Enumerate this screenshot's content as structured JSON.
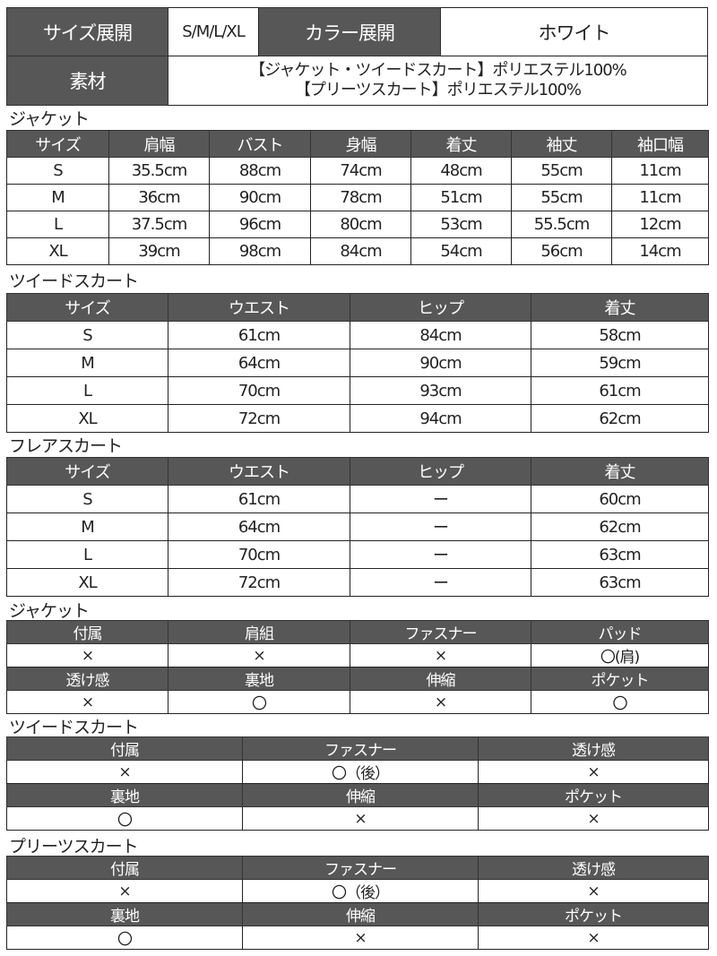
{
  "summary": {
    "size_label": "サイズ展開",
    "sizes": "S/M/L/XL",
    "color_label": "カラー展開",
    "color": "ホワイト",
    "material_label": "素材",
    "material_lines": [
      "【ジャケット・ツイードスカート】ポリエステル100%",
      "【プリーツスカート】ポリエステル100%"
    ]
  },
  "size_tables": [
    {
      "title": "ジャケット",
      "columns": [
        "サイズ",
        "肩幅",
        "バスト",
        "身幅",
        "着丈",
        "袖丈",
        "袖口幅"
      ],
      "rows": [
        [
          "S",
          "35.5cm",
          "88cm",
          "74cm",
          "48cm",
          "55cm",
          "11cm"
        ],
        [
          "M",
          "36cm",
          "90cm",
          "78cm",
          "51cm",
          "55cm",
          "11cm"
        ],
        [
          "L",
          "37.5cm",
          "96cm",
          "80cm",
          "53cm",
          "55.5cm",
          "12cm"
        ],
        [
          "XL",
          "39cm",
          "98cm",
          "84cm",
          "54cm",
          "56cm",
          "14cm"
        ]
      ]
    },
    {
      "title": "ツイードスカート",
      "columns": [
        "サイズ",
        "ウエスト",
        "ヒップ",
        "着丈"
      ],
      "rows": [
        [
          "S",
          "61cm",
          "84cm",
          "58cm"
        ],
        [
          "M",
          "64cm",
          "90cm",
          "59cm"
        ],
        [
          "L",
          "70cm",
          "93cm",
          "61cm"
        ],
        [
          "XL",
          "72cm",
          "94cm",
          "62cm"
        ]
      ]
    },
    {
      "title": "フレアスカート",
      "columns": [
        "サイズ",
        "ウエスト",
        "ヒップ",
        "着丈"
      ],
      "rows": [
        [
          "S",
          "61cm",
          "ー",
          "60cm"
        ],
        [
          "M",
          "64cm",
          "ー",
          "62cm"
        ],
        [
          "L",
          "70cm",
          "ー",
          "63cm"
        ],
        [
          "XL",
          "72cm",
          "ー",
          "63cm"
        ]
      ]
    }
  ],
  "attribute_tables": [
    {
      "title": "ジャケット",
      "blocks": [
        {
          "headers": [
            "付属",
            "肩組",
            "ファスナー",
            "パッド"
          ],
          "values": [
            "×",
            "×",
            "×",
            "〇(肩)"
          ]
        },
        {
          "headers": [
            "透け感",
            "裏地",
            "伸縮",
            "ポケット"
          ],
          "values": [
            "×",
            "〇",
            "×",
            "〇"
          ]
        }
      ]
    },
    {
      "title": "ツイードスカート",
      "blocks": [
        {
          "headers": [
            "付属",
            "ファスナー",
            "透け感"
          ],
          "values": [
            "×",
            "〇（後）",
            "×"
          ]
        },
        {
          "headers": [
            "裏地",
            "伸縮",
            "ポケット"
          ],
          "values": [
            "〇",
            "×",
            "×"
          ]
        }
      ]
    },
    {
      "title": "プリーツスカート",
      "blocks": [
        {
          "headers": [
            "付属",
            "ファスナー",
            "透け感"
          ],
          "values": [
            "×",
            "〇（後）",
            "×"
          ]
        },
        {
          "headers": [
            "裏地",
            "伸縮",
            "ポケット"
          ],
          "values": [
            "〇",
            "×",
            "×"
          ]
        }
      ]
    }
  ]
}
